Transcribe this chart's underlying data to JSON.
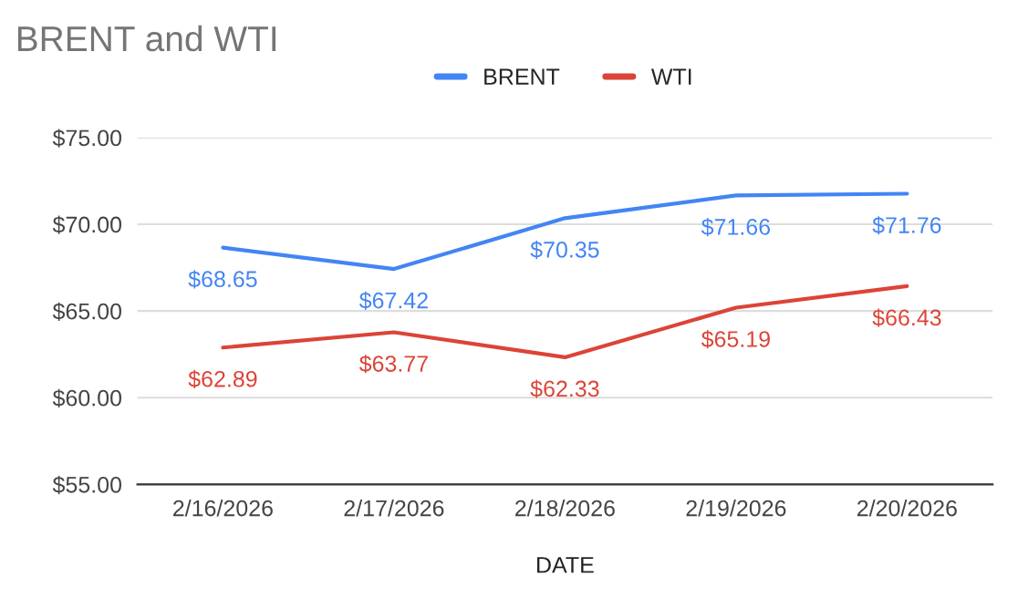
{
  "chart_data": {
    "type": "line",
    "title": "BRENT and WTI",
    "xlabel": "DATE",
    "categories": [
      "2/16/2026",
      "2/17/2026",
      "2/18/2026",
      "2/19/2026",
      "2/20/2026"
    ],
    "series": [
      {
        "name": "BRENT",
        "color": "#4285f4",
        "values": [
          68.65,
          67.42,
          70.35,
          71.66,
          71.76
        ],
        "value_labels": [
          "$68.65",
          "$67.42",
          "$70.35",
          "$71.66",
          "$71.76"
        ]
      },
      {
        "name": "WTI",
        "color": "#db4437",
        "values": [
          62.89,
          63.77,
          62.33,
          65.19,
          66.43
        ],
        "value_labels": [
          "$62.89",
          "$63.77",
          "$62.33",
          "$65.19",
          "$66.43"
        ]
      }
    ],
    "ylim": [
      55,
      75
    ],
    "yticks": [
      {
        "value": 55,
        "label": "$55.00"
      },
      {
        "value": 60,
        "label": "$60.00"
      },
      {
        "value": 65,
        "label": "$65.00"
      },
      {
        "value": 70,
        "label": "$70.00"
      },
      {
        "value": 75,
        "label": "$75.00"
      }
    ],
    "grid": "y",
    "legend": "top",
    "marker": "none",
    "line_style": "solid"
  }
}
